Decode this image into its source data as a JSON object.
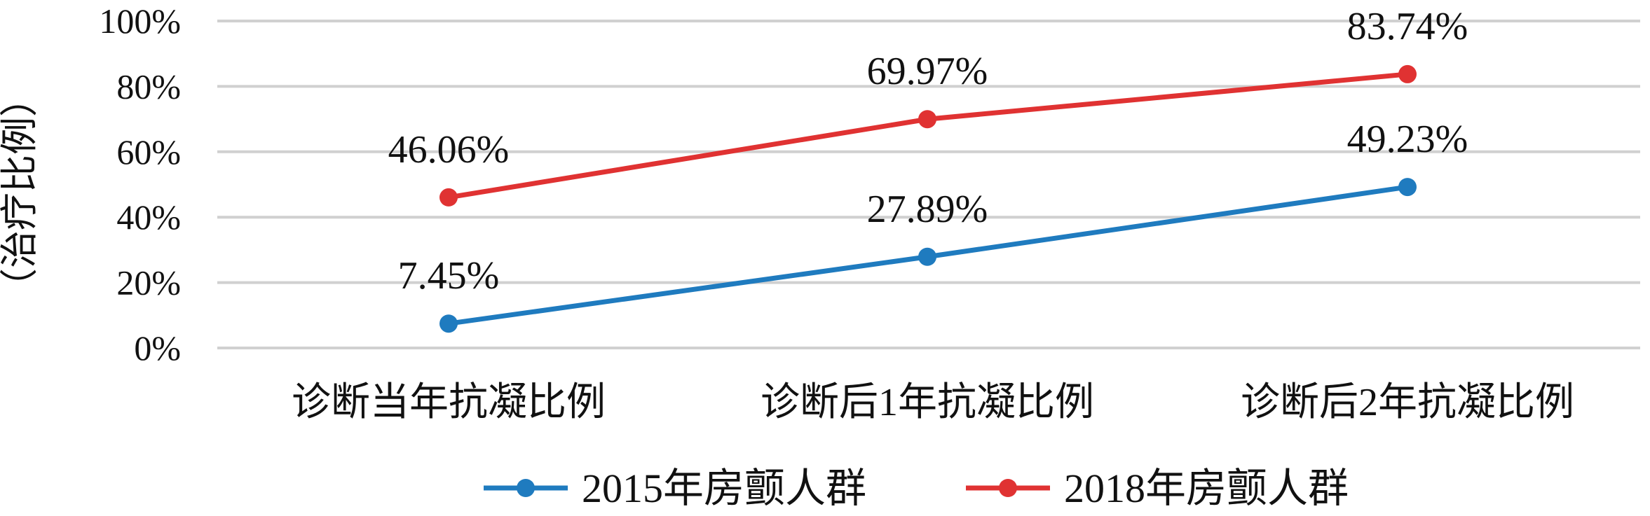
{
  "chart_data": {
    "type": "line",
    "categories": [
      "诊断当年抗凝比例",
      "诊断后1年抗凝比例",
      "诊断后2年抗凝比例"
    ],
    "series": [
      {
        "name": "2015年房颤人群",
        "values": [
          7.45,
          27.89,
          49.23
        ],
        "labels": [
          "7.45%",
          "27.89%",
          "49.23%"
        ],
        "color": "#1f7bbf"
      },
      {
        "name": "2018年房颤人群",
        "values": [
          46.06,
          69.97,
          83.74
        ],
        "labels": [
          "46.06%",
          "69.97%",
          "83.74%"
        ],
        "color": "#e03232"
      }
    ],
    "ylabel": "（治疗比例）",
    "ylim": [
      0,
      100
    ],
    "yticks": [
      "0%",
      "20%",
      "40%",
      "60%",
      "80%",
      "100%"
    ],
    "grid": true,
    "legend": "bottom"
  }
}
